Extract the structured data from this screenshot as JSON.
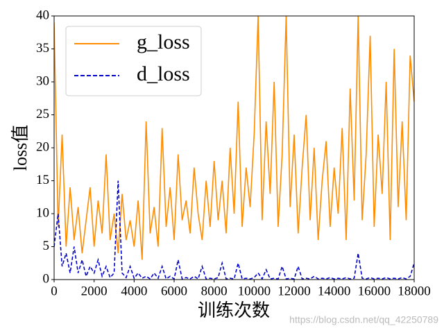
{
  "chart_data": {
    "type": "line",
    "xlabel": "训练次数",
    "ylabel": "loss值",
    "watermark": "https://blog.csdn.net/qq_42250789",
    "x": [
      0,
      200,
      400,
      600,
      800,
      1000,
      1200,
      1400,
      1600,
      1800,
      2000,
      2200,
      2400,
      2600,
      2800,
      3000,
      3200,
      3400,
      3600,
      3800,
      4000,
      4200,
      4400,
      4600,
      4800,
      5000,
      5200,
      5400,
      5600,
      5800,
      6000,
      6200,
      6400,
      6600,
      6800,
      7000,
      7200,
      7400,
      7600,
      7800,
      8000,
      8200,
      8400,
      8600,
      8800,
      9000,
      9200,
      9400,
      9600,
      9800,
      10000,
      10200,
      10400,
      10600,
      10800,
      11000,
      11200,
      11400,
      11600,
      11800,
      12000,
      12200,
      12400,
      12600,
      12800,
      13000,
      13200,
      13400,
      13600,
      13800,
      14000,
      14200,
      14400,
      14600,
      14800,
      15000,
      15200,
      15400,
      15600,
      15800,
      16000,
      16200,
      16400,
      16600,
      16800,
      17000,
      17200,
      17400,
      17600,
      17800,
      18000
    ],
    "series": [
      {
        "name": "g_loss",
        "color": "#ff8c00",
        "dash": false,
        "values": [
          39,
          8,
          22,
          5,
          14,
          6,
          11,
          4,
          9,
          14,
          5,
          12,
          7,
          19,
          6,
          10,
          4,
          13,
          6,
          9,
          5,
          12,
          3,
          24,
          7,
          11,
          5,
          23,
          8,
          14,
          6,
          19,
          9,
          12,
          7,
          17,
          10,
          6,
          15,
          8,
          18,
          9,
          15,
          7,
          20,
          10,
          27,
          8,
          17,
          11,
          22,
          40,
          9,
          24,
          13,
          30,
          8,
          19,
          40,
          11,
          22,
          7,
          17,
          25,
          9,
          20,
          6,
          15,
          21,
          8,
          17,
          10,
          23,
          6,
          29,
          12,
          40,
          9,
          19,
          37,
          8,
          22,
          13,
          30,
          6,
          35,
          11,
          24,
          9,
          34,
          27
        ]
      },
      {
        "name": "d_loss",
        "color": "#0000cd",
        "dash": true,
        "values": [
          5,
          10,
          2,
          4,
          1,
          5,
          1,
          3,
          0.5,
          2,
          1,
          3,
          0.5,
          2,
          0.3,
          1,
          15,
          1,
          0.3,
          2,
          0.2,
          1,
          0.2,
          0.5,
          0.1,
          1,
          0.2,
          2,
          0.1,
          0.5,
          0.1,
          3,
          0.1,
          0.3,
          0.1,
          0.5,
          0.1,
          2,
          0.1,
          0.2,
          0.1,
          0.3,
          2.5,
          0.1,
          0.2,
          0.1,
          2.5,
          0.1,
          0.2,
          0.1,
          0.3,
          1,
          0.1,
          1.5,
          0.1,
          0.2,
          0.1,
          2,
          0.1,
          0.2,
          0.1,
          2,
          0.1,
          0.2,
          0.1,
          0.5,
          0.1,
          0.2,
          0.1,
          0.3,
          0.1,
          0.2,
          0.1,
          0.3,
          0.1,
          0.2,
          4,
          0.2,
          0.1,
          0.3,
          0.1,
          0.2,
          0.1,
          0.3,
          0.1,
          0.2,
          0.1,
          0.3,
          0.1,
          0.5,
          2.5
        ]
      }
    ],
    "xlim": [
      0,
      18000
    ],
    "xticks": [
      0,
      2000,
      4000,
      6000,
      8000,
      10000,
      12000,
      14000,
      16000,
      18000
    ],
    "ylim": [
      0,
      40
    ],
    "yticks": [
      0,
      5,
      10,
      15,
      20,
      25,
      30,
      35,
      40
    ],
    "legend": "upper left"
  }
}
